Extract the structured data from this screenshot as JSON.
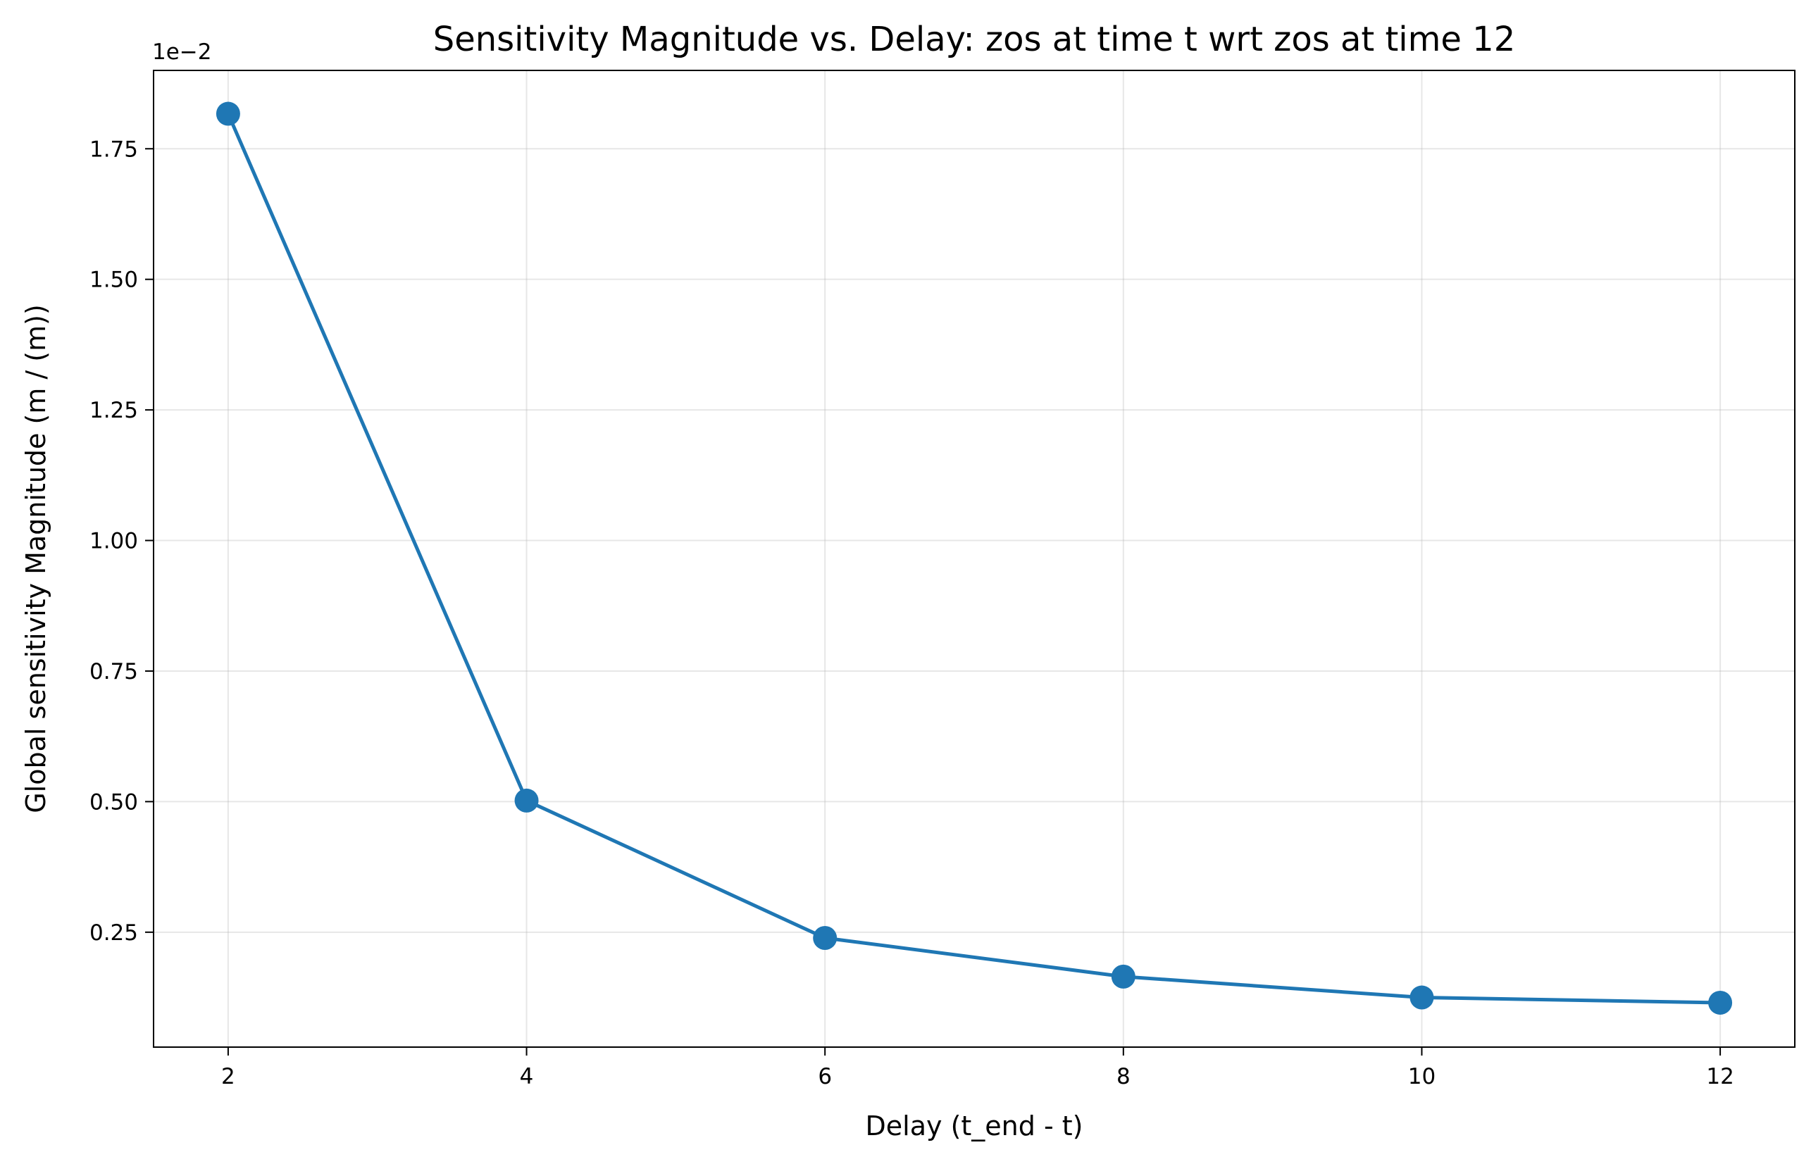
{
  "chart_data": {
    "type": "line",
    "title": "Sensitivity Magnitude vs. Delay: zos at time t wrt zos at time 12",
    "xlabel": "Delay (t_end - t)",
    "ylabel": "Global sensitivity Magnitude (m / (m))",
    "y_offset_label": "1e−2",
    "xlim": [
      1.5,
      12.5
    ],
    "ylim": [
      0.03,
      1.9
    ],
    "x_ticks": [
      2,
      4,
      6,
      8,
      10,
      12
    ],
    "x_tick_labels": [
      "2",
      "4",
      "6",
      "8",
      "10",
      "12"
    ],
    "y_ticks": [
      0.25,
      0.5,
      0.75,
      1.0,
      1.25,
      1.5,
      1.75
    ],
    "y_tick_labels": [
      "0.25",
      "0.50",
      "0.75",
      "1.00",
      "1.25",
      "1.50",
      "1.75"
    ],
    "grid": true,
    "series": [
      {
        "color": "#1f77b4",
        "x": [
          2,
          4,
          6,
          8,
          10,
          12
        ],
        "values": [
          1.817,
          0.502,
          0.239,
          0.165,
          0.125,
          0.115
        ]
      }
    ]
  }
}
